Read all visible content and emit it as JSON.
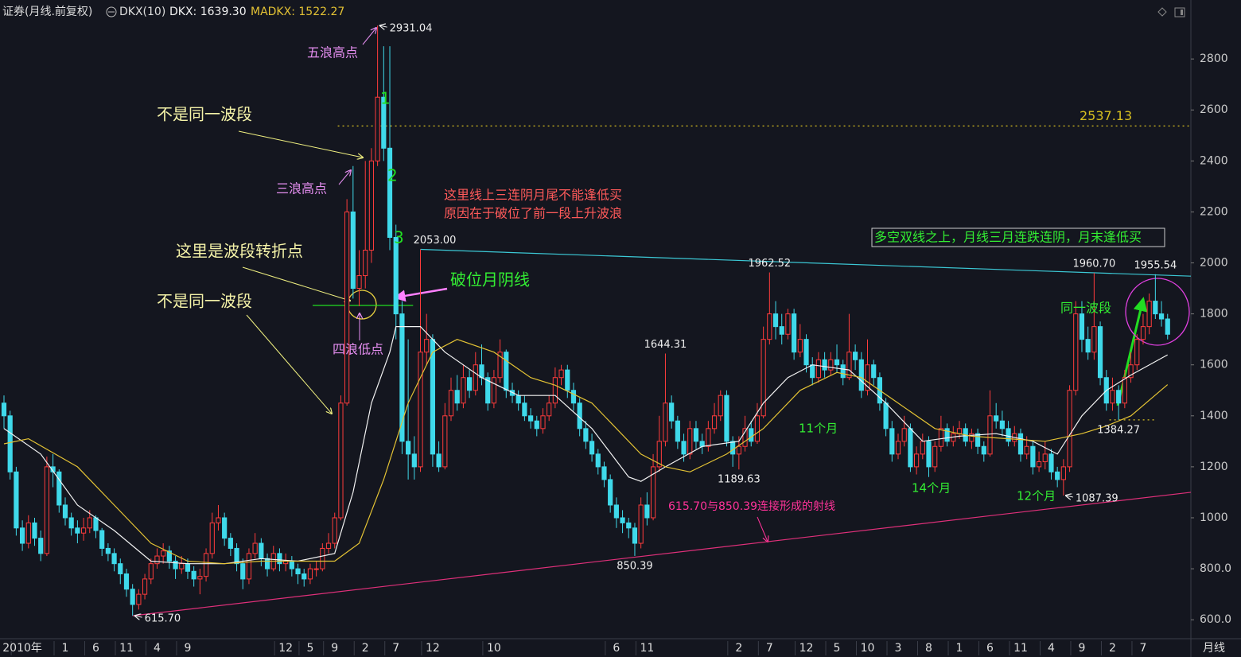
{
  "chart_data": {
    "type": "candlestick",
    "title": "证券(月线.前复权)",
    "indicator": "DKX(10)",
    "period": "月线",
    "up_color": "#ff3c3c",
    "down_color": "#3fd9ea",
    "grid": false,
    "xlim": [
      -0.65,
      193.8
    ],
    "xticks": [
      {
        "value": 3,
        "label": "2010年"
      },
      {
        "value": 10,
        "label": "1"
      },
      {
        "value": 15,
        "label": "6"
      },
      {
        "value": 20,
        "label": "11"
      },
      {
        "value": 25,
        "label": "4"
      },
      {
        "value": 30,
        "label": "9"
      },
      {
        "value": 46,
        "label": "12"
      },
      {
        "value": 50,
        "label": "5"
      },
      {
        "value": 54,
        "label": "9"
      },
      {
        "value": 59,
        "label": "2"
      },
      {
        "value": 64,
        "label": "7"
      },
      {
        "value": 70,
        "label": "12"
      },
      {
        "value": 80,
        "label": "10"
      },
      {
        "value": 100,
        "label": "6"
      },
      {
        "value": 105,
        "label": "11"
      },
      {
        "value": 120,
        "label": "2"
      },
      {
        "value": 125,
        "label": "7"
      },
      {
        "value": 131,
        "label": "12"
      },
      {
        "value": 136,
        "label": "5"
      },
      {
        "value": 141,
        "label": "10"
      },
      {
        "value": 146,
        "label": "3"
      },
      {
        "value": 151,
        "label": "8"
      },
      {
        "value": 156,
        "label": "1"
      },
      {
        "value": 161,
        "label": "6"
      },
      {
        "value": 166,
        "label": "11"
      },
      {
        "value": 171,
        "label": "4"
      },
      {
        "value": 176,
        "label": "9"
      },
      {
        "value": 181,
        "label": "2"
      },
      {
        "value": 186,
        "label": "7"
      }
    ],
    "ylim": [
      535,
      2944
    ],
    "yticks": [
      {
        "value": 600,
        "label": "600.0"
      },
      {
        "value": 800,
        "label": "800.0"
      },
      1000,
      1200,
      1400,
      1600,
      1800,
      2000,
      2200,
      2400,
      2600,
      2800
    ],
    "open": [
      1450,
      1400,
      1180,
      960,
      900,
      980,
      920,
      860,
      1200,
      1180,
      1050,
      1000,
      960,
      940,
      960,
      1000,
      950,
      880,
      860,
      820,
      780,
      720,
      660,
      700,
      760,
      820,
      850,
      870,
      830,
      800,
      820,
      790,
      760,
      770,
      860,
      980,
      1000,
      920,
      880,
      820,
      760,
      860,
      900,
      840,
      800,
      860,
      820,
      830,
      800,
      780,
      760,
      800,
      800,
      880,
      900,
      1000,
      1450,
      2200,
      1900,
      1950,
      2050,
      2400,
      2650,
      2450,
      2100,
      1800,
      1300,
      1250,
      1200,
      1650,
      1700,
      1250,
      1200,
      1400,
      1500,
      1450,
      1550,
      1500,
      1600,
      1550,
      1450,
      1550,
      1650,
      1500,
      1480,
      1450,
      1400,
      1380,
      1350,
      1400,
      1450,
      1550,
      1580,
      1500,
      1450,
      1350,
      1300,
      1250,
      1200,
      1150,
      1050,
      1000,
      980,
      960,
      900,
      1050,
      1000,
      1200,
      1300,
      1450,
      1380,
      1300,
      1250,
      1350,
      1300,
      1280,
      1350,
      1400,
      1480,
      1300,
      1250,
      1280,
      1350,
      1300,
      1400,
      1700,
      1800,
      1750,
      1720,
      1800,
      1650,
      1700,
      1600,
      1550,
      1620,
      1580,
      1620,
      1600,
      1550,
      1650,
      1620,
      1500,
      1600,
      1550,
      1450,
      1350,
      1250,
      1300,
      1350,
      1200,
      1250,
      1300,
      1200,
      1280,
      1350,
      1300,
      1330,
      1350,
      1300,
      1330,
      1280,
      1250,
      1400,
      1380,
      1350,
      1300,
      1330,
      1250,
      1280,
      1200,
      1220,
      1250,
      1180,
      1150,
      1200,
      1500,
      1800,
      1700,
      1650,
      1750,
      1550,
      1450,
      1500,
      1450,
      1550,
      1600,
      1700,
      1750,
      1850,
      1800,
      1780
    ],
    "high": [
      1480,
      1420,
      1200,
      990,
      1010,
      1000,
      950,
      1240,
      1250,
      1190,
      1080,
      1020,
      990,
      1000,
      1030,
      1010,
      960,
      900,
      880,
      840,
      800,
      740,
      720,
      780,
      840,
      880,
      900,
      890,
      850,
      850,
      840,
      810,
      800,
      880,
      1020,
      1050,
      1020,
      940,
      900,
      840,
      880,
      940,
      920,
      860,
      890,
      880,
      860,
      850,
      820,
      800,
      820,
      830,
      900,
      940,
      1020,
      1480,
      2250,
      2380,
      2050,
      2400,
      2450,
      2931.04,
      2850,
      2850,
      2150,
      1850,
      1700,
      1320,
      2053,
      1800,
      1720,
      1300,
      1450,
      1550,
      1560,
      1600,
      1580,
      1650,
      1680,
      1570,
      1580,
      1700,
      1660,
      1530,
      1500,
      1480,
      1430,
      1400,
      1430,
      1480,
      1590,
      1600,
      1600,
      1530,
      1470,
      1380,
      1330,
      1270,
      1220,
      1170,
      1080,
      1030,
      1000,
      980,
      1080,
      1100,
      1250,
      1400,
      1644.31,
      1480,
      1400,
      1330,
      1380,
      1380,
      1330,
      1380,
      1450,
      1500,
      1500,
      1320,
      1320,
      1400,
      1380,
      1450,
      1750,
      1962.52,
      1850,
      1800,
      1820,
      1820,
      1760,
      1720,
      1630,
      1650,
      1650,
      1650,
      1680,
      1620,
      1800,
      1680,
      1650,
      1700,
      1620,
      1570,
      1470,
      1380,
      1330,
      1400,
      1370,
      1280,
      1330,
      1320,
      1300,
      1400,
      1370,
      1360,
      1380,
      1370,
      1350,
      1350,
      1300,
      1500,
      1450,
      1420,
      1380,
      1360,
      1350,
      1320,
      1300,
      1260,
      1300,
      1270,
      1200,
      1230,
      1520,
      1850,
      1850,
      1750,
      1960.7,
      1770,
      1580,
      1550,
      1520,
      1580,
      1650,
      1720,
      1800,
      1880,
      1955.54,
      1850,
      1800
    ],
    "low": [
      1350,
      1150,
      930,
      870,
      880,
      890,
      830,
      850,
      1120,
      1020,
      970,
      930,
      900,
      910,
      940,
      920,
      850,
      830,
      790,
      740,
      690,
      615.7,
      640,
      680,
      740,
      800,
      820,
      800,
      760,
      780,
      760,
      730,
      700,
      750,
      840,
      950,
      890,
      850,
      790,
      720,
      740,
      840,
      810,
      770,
      790,
      790,
      790,
      770,
      740,
      730,
      740,
      770,
      790,
      860,
      880,
      990,
      1440,
      1860,
      1830,
      1900,
      2000,
      2380,
      2400,
      2050,
      1700,
      1250,
      1150,
      1150,
      1180,
      1600,
      1200,
      1180,
      1190,
      1380,
      1420,
      1430,
      1470,
      1480,
      1520,
      1420,
      1430,
      1530,
      1470,
      1450,
      1420,
      1380,
      1350,
      1320,
      1330,
      1380,
      1430,
      1520,
      1470,
      1420,
      1320,
      1270,
      1220,
      1170,
      1120,
      1020,
      960,
      940,
      920,
      850.39,
      880,
      970,
      990,
      1180,
      1280,
      1350,
      1270,
      1220,
      1230,
      1270,
      1250,
      1260,
      1330,
      1380,
      1280,
      1200,
      1189.63,
      1260,
      1280,
      1290,
      1390,
      1680,
      1700,
      1680,
      1700,
      1620,
      1630,
      1570,
      1520,
      1530,
      1550,
      1560,
      1570,
      1520,
      1540,
      1580,
      1470,
      1480,
      1520,
      1420,
      1320,
      1220,
      1230,
      1280,
      1180,
      1170,
      1230,
      1160,
      1180,
      1260,
      1280,
      1280,
      1310,
      1280,
      1270,
      1250,
      1220,
      1240,
      1350,
      1320,
      1280,
      1280,
      1220,
      1230,
      1170,
      1180,
      1190,
      1150,
      1120,
      1087.39,
      1180,
      1480,
      1650,
      1620,
      1620,
      1520,
      1420,
      1420,
      1384.27,
      1430,
      1530,
      1580,
      1680,
      1720,
      1780,
      1750,
      1700
    ],
    "close": [
      1400,
      1180,
      960,
      900,
      980,
      920,
      860,
      1200,
      1180,
      1050,
      1000,
      960,
      940,
      960,
      1000,
      950,
      880,
      860,
      820,
      780,
      720,
      660,
      700,
      760,
      820,
      850,
      870,
      830,
      800,
      820,
      790,
      760,
      770,
      860,
      980,
      1000,
      920,
      880,
      820,
      760,
      860,
      900,
      840,
      800,
      860,
      820,
      830,
      800,
      780,
      760,
      800,
      800,
      880,
      900,
      1000,
      1450,
      2200,
      1900,
      1950,
      2050,
      2400,
      2650,
      2450,
      2100,
      1800,
      1300,
      1250,
      1200,
      1650,
      1700,
      1250,
      1200,
      1400,
      1500,
      1450,
      1550,
      1500,
      1600,
      1550,
      1450,
      1550,
      1650,
      1500,
      1480,
      1450,
      1400,
      1380,
      1350,
      1400,
      1450,
      1550,
      1580,
      1500,
      1450,
      1350,
      1300,
      1250,
      1200,
      1150,
      1050,
      1000,
      980,
      960,
      900,
      1050,
      1000,
      1200,
      1300,
      1450,
      1380,
      1300,
      1250,
      1350,
      1300,
      1280,
      1350,
      1400,
      1480,
      1300,
      1250,
      1280,
      1350,
      1300,
      1400,
      1700,
      1800,
      1750,
      1720,
      1800,
      1650,
      1700,
      1600,
      1550,
      1620,
      1580,
      1620,
      1600,
      1550,
      1650,
      1620,
      1500,
      1600,
      1550,
      1450,
      1350,
      1250,
      1300,
      1350,
      1200,
      1250,
      1300,
      1200,
      1280,
      1350,
      1300,
      1330,
      1350,
      1300,
      1330,
      1280,
      1250,
      1400,
      1380,
      1350,
      1300,
      1330,
      1250,
      1280,
      1200,
      1220,
      1250,
      1180,
      1150,
      1200,
      1500,
      1800,
      1700,
      1650,
      1750,
      1550,
      1450,
      1500,
      1450,
      1550,
      1600,
      1700,
      1750,
      1850,
      1800,
      1780,
      1720
    ],
    "series": [
      {
        "name": "DKX: 1639.30",
        "color": "#f2f2f2",
        "x": [
          0,
          6,
          12,
          18,
          24,
          30,
          36,
          42,
          48,
          54,
          57,
          60,
          63,
          64,
          68,
          72,
          78,
          84,
          90,
          96,
          102,
          104,
          108,
          114,
          120,
          124,
          128,
          132,
          138,
          144,
          150,
          156,
          162,
          168,
          172,
          176,
          180,
          184,
          190
        ],
        "values": [
          1350,
          1250,
          1050,
          950,
          830,
          820,
          820,
          840,
          830,
          860,
          1100,
          1450,
          1650,
          1750,
          1750,
          1650,
          1550,
          1480,
          1480,
          1350,
          1160,
          1143,
          1200,
          1280,
          1300,
          1450,
          1550,
          1600,
          1580,
          1450,
          1300,
          1320,
          1330,
          1300,
          1250,
          1400,
          1500,
          1560,
          1639.3
        ]
      },
      {
        "name": "MADKX: 1522.27",
        "color": "#e3c234",
        "x": [
          0,
          4,
          12,
          18,
          24,
          30,
          36,
          42,
          48,
          54,
          58,
          62,
          64,
          66,
          68,
          70,
          74,
          80,
          86,
          90,
          96,
          100,
          104,
          108,
          112,
          118,
          124,
          130,
          136,
          140,
          146,
          152,
          158,
          164,
          170,
          176,
          180,
          184,
          190
        ],
        "values": [
          1290,
          1310,
          1200,
          1050,
          900,
          830,
          820,
          830,
          830,
          830,
          900,
          1150,
          1300,
          1450,
          1550,
          1650,
          1700,
          1650,
          1550,
          1520,
          1450,
          1350,
          1250,
          1200,
          1180,
          1250,
          1350,
          1500,
          1570,
          1550,
          1450,
          1350,
          1320,
          1310,
          1300,
          1330,
          1360,
          1400,
          1522.27
        ]
      }
    ],
    "reference_lines": [
      {
        "color": "#3cc9d6",
        "style": "solid",
        "x": [
          68,
          193.8
        ],
        "values": [
          2053,
          1948
        ]
      },
      {
        "color": "#e0307a",
        "style": "solid",
        "x": [
          21,
          193.8
        ],
        "values": [
          615.7,
          1100
        ]
      },
      {
        "color": "#22dd22",
        "style": "solid",
        "x": [
          50.4,
          66.8
        ],
        "values": [
          1833,
          1833
        ]
      },
      {
        "color": "#d8c020",
        "style": "dotted",
        "x": [
          54.5,
          193.8
        ],
        "values": [
          2537.13,
          2537.13
        ],
        "label": "2537.13"
      },
      {
        "color": "#d8c020",
        "style": "dotted",
        "x": [
          180.5,
          187.8
        ],
        "values": [
          1384.27,
          1384.27
        ]
      }
    ],
    "extremes": [
      {
        "x": 61,
        "value": 2931.04,
        "label": "2931.04",
        "placement": "right"
      },
      {
        "x": 68,
        "value": 2053,
        "label": "2053.00",
        "placement": "above"
      },
      {
        "x": 125,
        "value": 1962.52,
        "label": "1962.52",
        "placement": "above"
      },
      {
        "x": 108,
        "value": 1644.31,
        "label": "1644.31",
        "placement": "above"
      },
      {
        "x": 120,
        "value": 1189.63,
        "label": "1189.63",
        "placement": "below"
      },
      {
        "x": 103,
        "value": 850.39,
        "label": "850.39",
        "placement": "below"
      },
      {
        "x": 21,
        "value": 615.7,
        "label": "615.70",
        "placement": "right"
      },
      {
        "x": 178,
        "value": 1960.7,
        "label": "1960.70",
        "placement": "above"
      },
      {
        "x": 188,
        "value": 1955.54,
        "label": "1955.54",
        "placement": "above"
      },
      {
        "x": 182,
        "value": 1384.27,
        "label": "1384.27",
        "placement": "below"
      },
      {
        "x": 173,
        "value": 1087.39,
        "label": "1087.39",
        "placement": "right"
      }
    ],
    "annotations": [
      {
        "text": "五浪高点",
        "color": "#e58ef0"
      },
      {
        "text": "三浪高点",
        "color": "#e58ef0"
      },
      {
        "text": "四浪低点",
        "color": "#e58ef0"
      },
      {
        "text": "不是同一波段",
        "color": "#f5f3a8"
      },
      {
        "text": "这里是波段转折点",
        "color": "#f5f3a8"
      },
      {
        "text": "不是同一波段",
        "color": "#f5f3a8"
      },
      {
        "text": "这里线上三连阴月尾不能逢低买",
        "color": "#ff5a5a"
      },
      {
        "text": "原因在于破位了前一段上升波浪",
        "color": "#ff5a5a"
      },
      {
        "text": "破位月阴线",
        "color": "#33ee33"
      },
      {
        "text": "多空双线之上，月线三月连跌连阴，月末逢低买",
        "color": "#33ee33"
      },
      {
        "text": "同一波段",
        "color": "#33ee33"
      },
      {
        "text": "11个月",
        "color": "#33ee33"
      },
      {
        "text": "14个月",
        "color": "#33ee33"
      },
      {
        "text": "12个月",
        "color": "#33ee33"
      },
      {
        "text": "615.70与850.39连接形成的射线",
        "color": "#ff3399"
      },
      {
        "text": "1",
        "color": "#22dd22"
      },
      {
        "text": "2",
        "color": "#22dd22"
      },
      {
        "text": "3",
        "color": "#22dd22"
      }
    ]
  }
}
